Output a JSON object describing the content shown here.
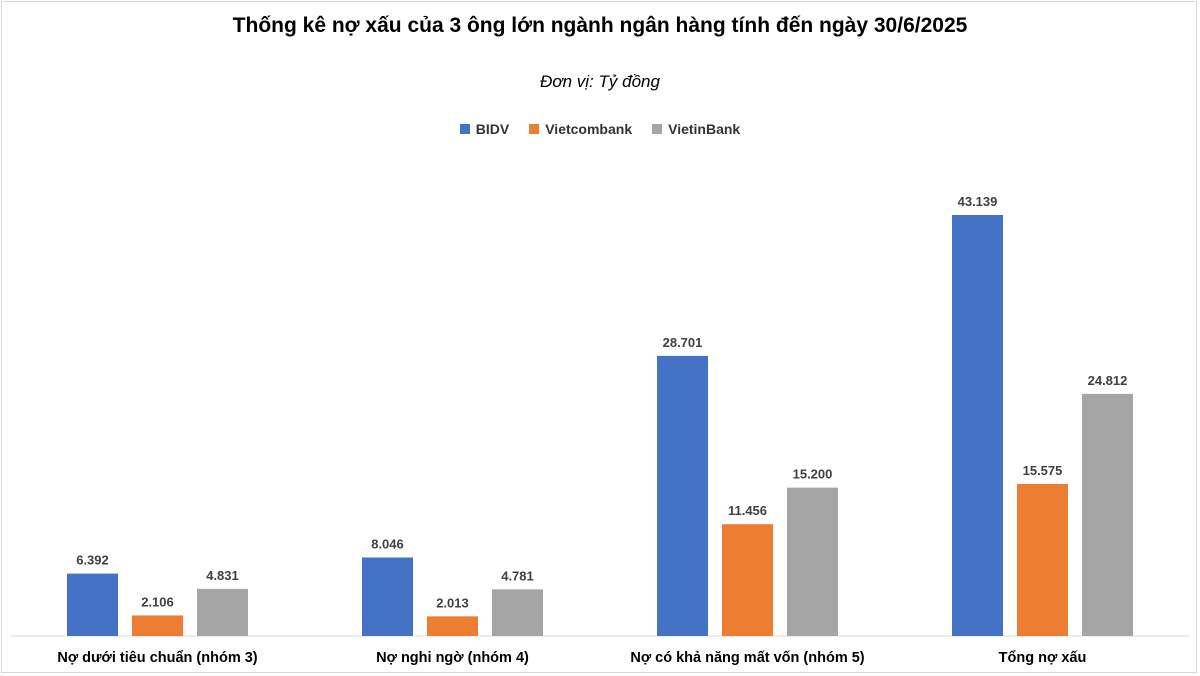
{
  "chart_data": {
    "type": "bar",
    "title": "Thống kê nợ xấu của 3 ông lớn ngành ngân hàng tính đến ngày 30/6/2025",
    "subtitle": "Đơn vị: Tỷ đồng",
    "categories": [
      "Nợ dưới tiêu chuẩn (nhóm 3)",
      "Nợ nghi ngờ (nhóm 4)",
      "Nợ có khả năng mất vốn (nhóm 5)",
      "Tổng nợ xấu"
    ],
    "series": [
      {
        "name": "BIDV",
        "color": "#4472c4",
        "values": [
          6392,
          8046,
          28701,
          43139
        ],
        "labels": [
          "6.392",
          "8.046",
          "28.701",
          "43.139"
        ]
      },
      {
        "name": "Vietcombank",
        "color": "#ed7d31",
        "values": [
          2106,
          2013,
          11456,
          15575
        ],
        "labels": [
          "2.106",
          "2.013",
          "11.456",
          "15.575"
        ]
      },
      {
        "name": "VietinBank",
        "color": "#a5a5a5",
        "values": [
          4831,
          4781,
          15200,
          24812
        ],
        "labels": [
          "4.831",
          "4.781",
          "15.200",
          "24.812"
        ]
      }
    ],
    "ylim": [
      0,
      45000
    ],
    "grid": false,
    "legend_position": "top"
  }
}
